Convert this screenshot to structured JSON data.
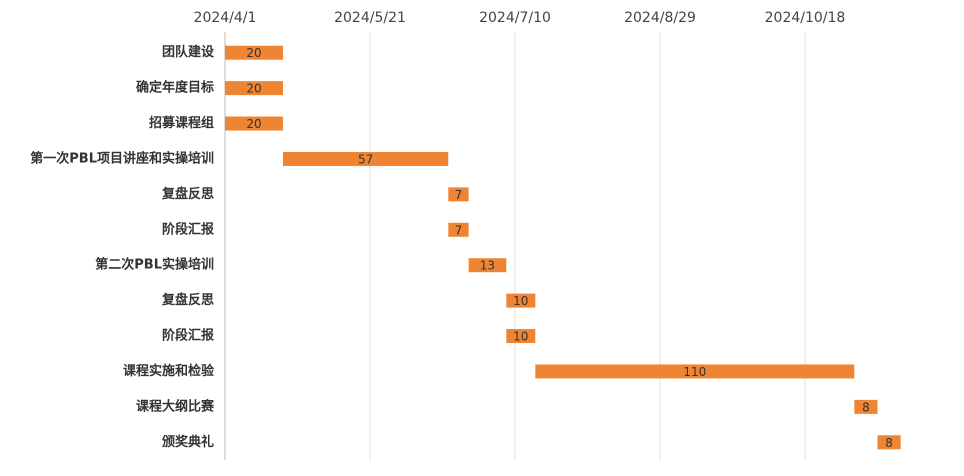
{
  "chart_data": {
    "type": "gantt",
    "categories": [
      "团队建设",
      "确定年度目标",
      "招募课程组",
      "第一次PBL项目讲座和实操培训",
      "复盘反思",
      "阶段汇报",
      "第二次PBL实操培训",
      "复盘反思",
      "阶段汇报",
      "课程实施和检验",
      "课程大纲比赛",
      "颁奖典礼"
    ],
    "start": [
      "2024/4/1",
      "2024/4/1",
      "2024/4/1",
      "2024/4/21",
      "2024/6/17",
      "2024/6/17",
      "2024/6/24",
      "2024/7/7",
      "2024/7/7",
      "2024/7/17",
      "2024/11/4",
      "2024/11/12"
    ],
    "values": [
      20,
      20,
      20,
      57,
      7,
      7,
      13,
      10,
      10,
      110,
      8,
      8
    ],
    "color": "#ef8532",
    "xlim": [
      "2024/4/1",
      "2024/12/7"
    ],
    "xticks": [
      "2024/4/1",
      "2024/5/21",
      "2024/7/10",
      "2024/8/29",
      "2024/10/18"
    ],
    "grid": true
  }
}
